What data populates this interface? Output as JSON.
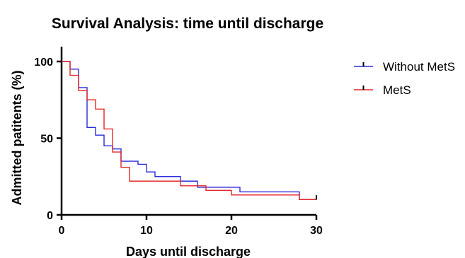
{
  "chart_data": {
    "type": "line",
    "subtype": "step",
    "title": "Survival Analysis: time until discharge",
    "xlabel": "Days until discharge",
    "ylabel": "Admitted patitents (%)",
    "xlim": [
      0,
      30
    ],
    "ylim": [
      0,
      100
    ],
    "xticks": [
      "0",
      "10",
      "20",
      "30"
    ],
    "yticks": [
      "0",
      "50",
      "100"
    ],
    "grid": false,
    "legend_position": "right",
    "series": [
      {
        "name": "Without MetS",
        "color": "#2b2bd9",
        "x": [
          0,
          1,
          2,
          3,
          4,
          5,
          6,
          7,
          9,
          10,
          11,
          14,
          16,
          17,
          21,
          28,
          30
        ],
        "y": [
          100,
          95,
          83,
          57,
          52,
          45,
          43,
          35,
          33,
          28,
          25,
          22,
          18,
          18,
          15,
          10,
          10
        ]
      },
      {
        "name": "MetS",
        "color": "#e82626",
        "x": [
          0,
          1,
          2,
          3,
          4,
          5,
          6,
          7,
          8,
          14,
          17,
          20,
          28,
          30
        ],
        "y": [
          100,
          91,
          81,
          75,
          69,
          56,
          41,
          31,
          22,
          19,
          16,
          13,
          10,
          10
        ]
      }
    ]
  }
}
